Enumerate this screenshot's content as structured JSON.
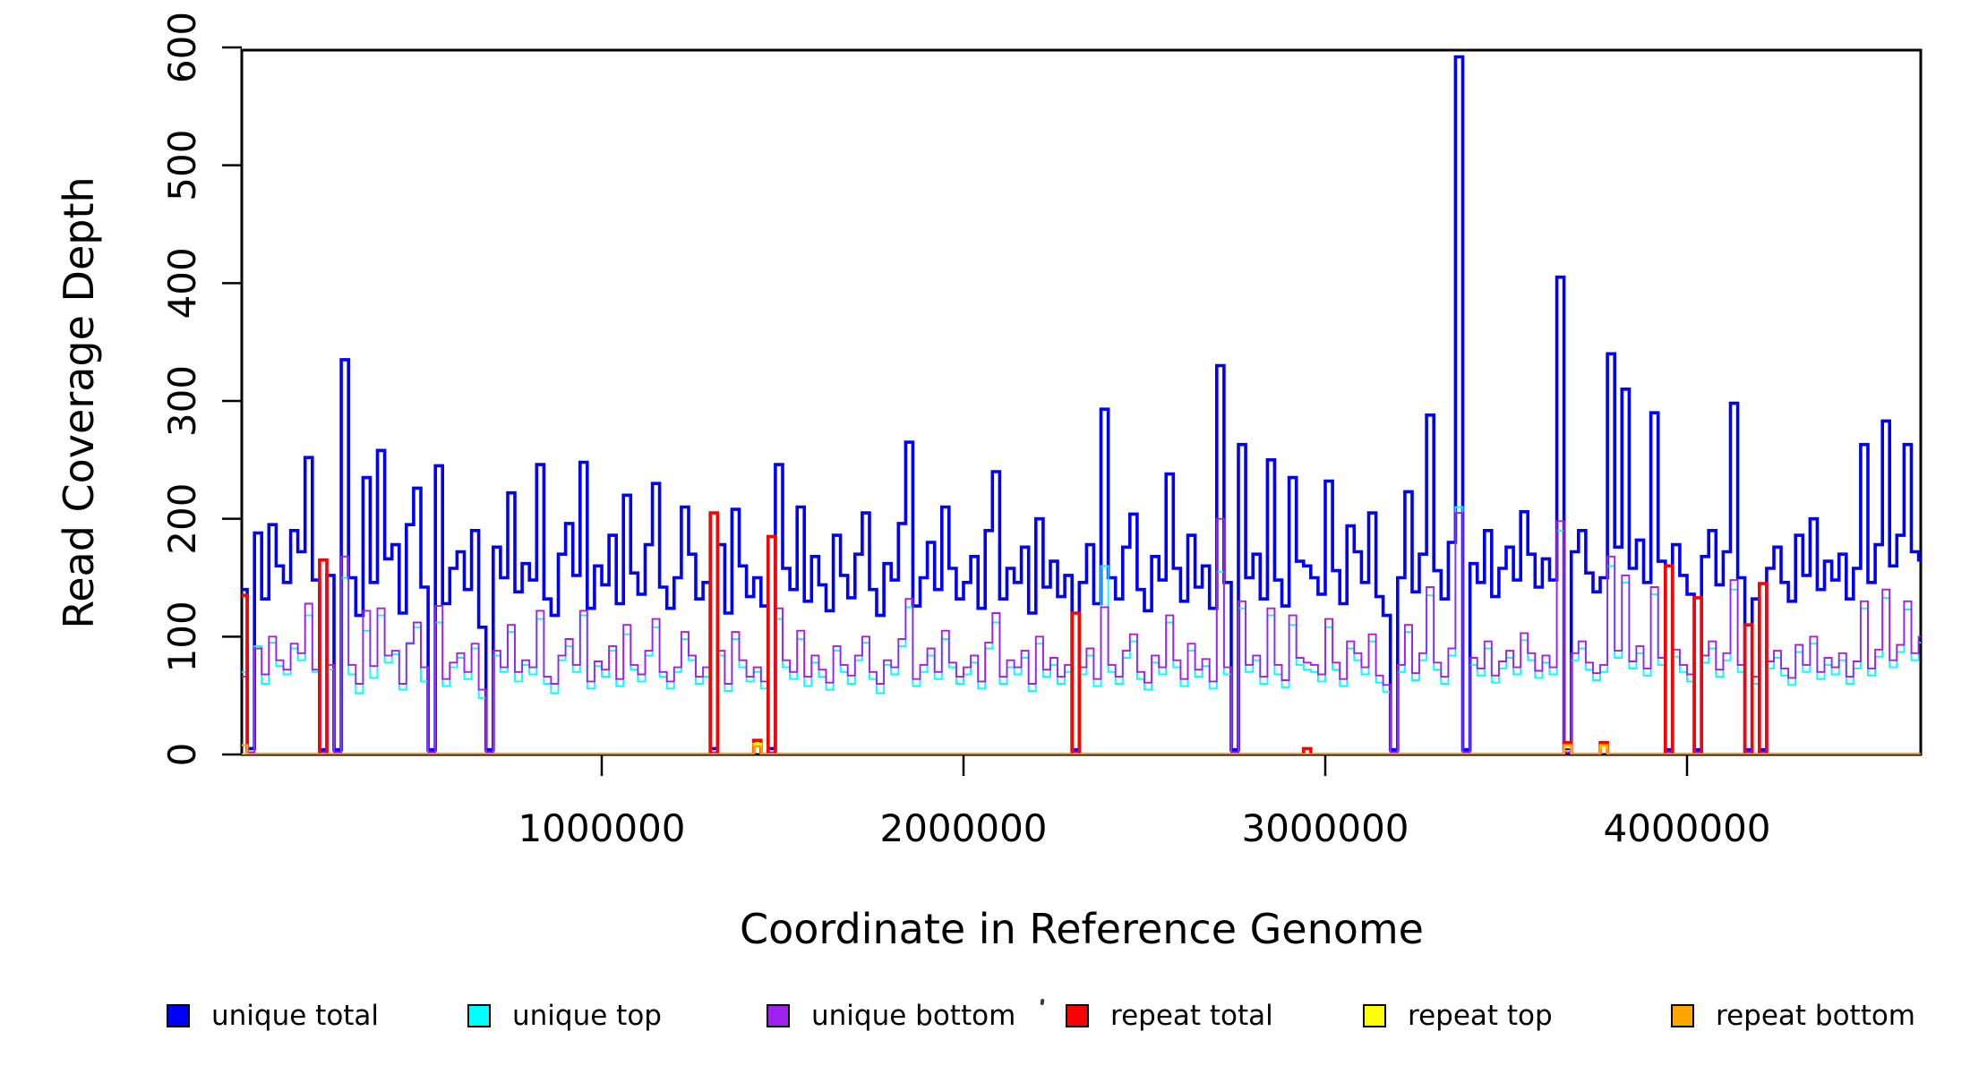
{
  "chart_data": {
    "type": "line",
    "subtype": "step",
    "title": "",
    "xlabel": "Coordinate in Reference Genome",
    "ylabel": "Read Coverage Depth",
    "xlim": [
      0,
      4660000
    ],
    "ylim": [
      0,
      600
    ],
    "x_ticks": [
      1000000,
      2000000,
      3000000,
      4000000
    ],
    "y_ticks": [
      0,
      100,
      200,
      300,
      400,
      500,
      600
    ],
    "grid": false,
    "legend_position": "bottom",
    "window_size": 20000,
    "n_windows": 233,
    "series_meta": [
      {
        "key": "unique_total",
        "label": "unique total",
        "color": "#0000FF"
      },
      {
        "key": "unique_top",
        "label": "unique top",
        "color": "#00FFFF"
      },
      {
        "key": "unique_bottom",
        "label": "unique bottom",
        "color": "#A020F0"
      },
      {
        "key": "repeat_total",
        "label": "repeat total",
        "color": "#FF0000"
      },
      {
        "key": "repeat_top",
        "label": "repeat top",
        "color": "#FFFF00"
      },
      {
        "key": "repeat_bottom",
        "label": "repeat bottom",
        "color": "#FFA500"
      }
    ],
    "values": {
      "unique_total": [
        140,
        5,
        188,
        132,
        195,
        160,
        146,
        190,
        172,
        252,
        148,
        4,
        152,
        4,
        335,
        150,
        118,
        235,
        146,
        258,
        166,
        178,
        120,
        195,
        226,
        142,
        4,
        245,
        128,
        158,
        172,
        140,
        190,
        108,
        4,
        176,
        150,
        222,
        138,
        162,
        148,
        246,
        132,
        118,
        170,
        196,
        152,
        248,
        124,
        160,
        144,
        186,
        128,
        220,
        154,
        136,
        178,
        230,
        142,
        124,
        150,
        210,
        170,
        132,
        146,
        5,
        178,
        120,
        208,
        160,
        134,
        150,
        126,
        5,
        246,
        158,
        140,
        210,
        130,
        168,
        144,
        122,
        186,
        152,
        133,
        170,
        205,
        140,
        118,
        162,
        148,
        196,
        265,
        126,
        150,
        180,
        140,
        210,
        158,
        132,
        146,
        168,
        124,
        190,
        240,
        132,
        158,
        146,
        176,
        120,
        200,
        142,
        164,
        134,
        152,
        4,
        146,
        178,
        128,
        293,
        150,
        132,
        176,
        204,
        140,
        122,
        168,
        148,
        238,
        158,
        130,
        186,
        142,
        160,
        124,
        330,
        146,
        4,
        263,
        150,
        170,
        132,
        250,
        148,
        126,
        235,
        164,
        160,
        150,
        136,
        232,
        156,
        128,
        194,
        172,
        146,
        205,
        134,
        118,
        4,
        150,
        223,
        138,
        170,
        288,
        156,
        132,
        180,
        592,
        4,
        162,
        146,
        190,
        134,
        158,
        176,
        148,
        206,
        170,
        142,
        166,
        148,
        405,
        5,
        172,
        190,
        154,
        138,
        150,
        340,
        176,
        310,
        158,
        182,
        146,
        290,
        164,
        4,
        178,
        152,
        136,
        4,
        168,
        190,
        144,
        172,
        298,
        150,
        4,
        132,
        4,
        158,
        176,
        146,
        130,
        186,
        152,
        200,
        140,
        164,
        148,
        170,
        132,
        158,
        263,
        146,
        178,
        283,
        160,
        186,
        263,
        172,
        165
      ],
      "unique_top": [
        70,
        2,
        92,
        60,
        95,
        75,
        68,
        90,
        80,
        118,
        70,
        2,
        72,
        2,
        150,
        68,
        52,
        105,
        65,
        118,
        78,
        85,
        55,
        95,
        108,
        62,
        2,
        112,
        58,
        74,
        82,
        64,
        90,
        48,
        2,
        84,
        70,
        104,
        62,
        76,
        68,
        115,
        60,
        52,
        80,
        92,
        70,
        118,
        56,
        75,
        66,
        88,
        58,
        102,
        72,
        62,
        84,
        108,
        66,
        56,
        70,
        98,
        80,
        60,
        66,
        2,
        84,
        54,
        98,
        74,
        62,
        70,
        56,
        2,
        115,
        74,
        64,
        98,
        58,
        78,
        66,
        55,
        88,
        70,
        60,
        80,
        95,
        64,
        52,
        76,
        68,
        92,
        125,
        58,
        70,
        84,
        64,
        98,
        74,
        60,
        68,
        78,
        56,
        90,
        112,
        60,
        74,
        68,
        82,
        54,
        94,
        66,
        76,
        60,
        70,
        2,
        68,
        84,
        58,
        160,
        70,
        60,
        82,
        96,
        64,
        55,
        78,
        68,
        112,
        74,
        58,
        88,
        66,
        75,
        56,
        155,
        68,
        2,
        124,
        70,
        80,
        60,
        118,
        68,
        57,
        110,
        76,
        72,
        70,
        62,
        108,
        72,
        58,
        90,
        80,
        68,
        96,
        61,
        53,
        2,
        70,
        104,
        63,
        80,
        135,
        72,
        60,
        84,
        210,
        2,
        76,
        67,
        90,
        61,
        73,
        82,
        68,
        97,
        80,
        65,
        78,
        68,
        190,
        2,
        80,
        90,
        72,
        63,
        70,
        160,
        82,
        146,
        73,
        86,
        67,
        136,
        76,
        2,
        83,
        70,
        62,
        2,
        78,
        90,
        66,
        80,
        140,
        70,
        2,
        60,
        2,
        73,
        82,
        67,
        59,
        87,
        70,
        94,
        64,
        76,
        68,
        80,
        60,
        73,
        124,
        67,
        83,
        133,
        74,
        87,
        123,
        80,
        95
      ],
      "unique_bottom": [
        66,
        2,
        90,
        68,
        100,
        80,
        72,
        94,
        86,
        128,
        72,
        2,
        76,
        2,
        168,
        76,
        60,
        122,
        75,
        124,
        84,
        88,
        60,
        94,
        112,
        74,
        2,
        126,
        64,
        78,
        86,
        70,
        94,
        55,
        2,
        88,
        74,
        110,
        70,
        80,
        74,
        122,
        66,
        60,
        84,
        98,
        76,
        122,
        62,
        79,
        72,
        92,
        64,
        110,
        76,
        68,
        88,
        115,
        70,
        62,
        74,
        104,
        84,
        66,
        74,
        2,
        88,
        60,
        104,
        80,
        66,
        74,
        62,
        2,
        124,
        80,
        70,
        105,
        66,
        84,
        72,
        61,
        92,
        76,
        67,
        84,
        100,
        70,
        60,
        80,
        74,
        98,
        132,
        64,
        76,
        90,
        70,
        105,
        78,
        66,
        74,
        84,
        62,
        95,
        120,
        66,
        80,
        74,
        88,
        60,
        100,
        72,
        82,
        66,
        76,
        2,
        74,
        90,
        64,
        125,
        76,
        66,
        88,
        102,
        70,
        61,
        84,
        74,
        118,
        80,
        64,
        94,
        72,
        81,
        62,
        200,
        74,
        2,
        130,
        76,
        84,
        66,
        124,
        76,
        63,
        118,
        82,
        78,
        76,
        68,
        115,
        78,
        64,
        96,
        86,
        74,
        102,
        67,
        59,
        2,
        76,
        110,
        69,
        86,
        142,
        78,
        66,
        90,
        205,
        2,
        82,
        73,
        96,
        67,
        79,
        88,
        74,
        103,
        86,
        71,
        84,
        74,
        198,
        2,
        86,
        96,
        78,
        69,
        76,
        168,
        88,
        152,
        79,
        92,
        73,
        142,
        82,
        2,
        89,
        76,
        68,
        2,
        84,
        96,
        72,
        86,
        148,
        76,
        2,
        66,
        2,
        79,
        88,
        73,
        65,
        93,
        76,
        100,
        70,
        82,
        74,
        86,
        66,
        79,
        130,
        73,
        89,
        140,
        80,
        93,
        130,
        86,
        100
      ],
      "repeat_total": {
        "0": 135,
        "11": 165,
        "65": 205,
        "71": 12,
        "73": 185,
        "115": 120,
        "147": 5,
        "183": 10,
        "188": 10,
        "197": 160,
        "201": 133,
        "208": 110,
        "210": 145
      },
      "repeat_top": {
        "71": 9,
        "183": 6,
        "188": 6
      },
      "repeat_bottom": {
        "0": 8,
        "71": 7,
        "183": 8,
        "188": 8
      }
    }
  }
}
